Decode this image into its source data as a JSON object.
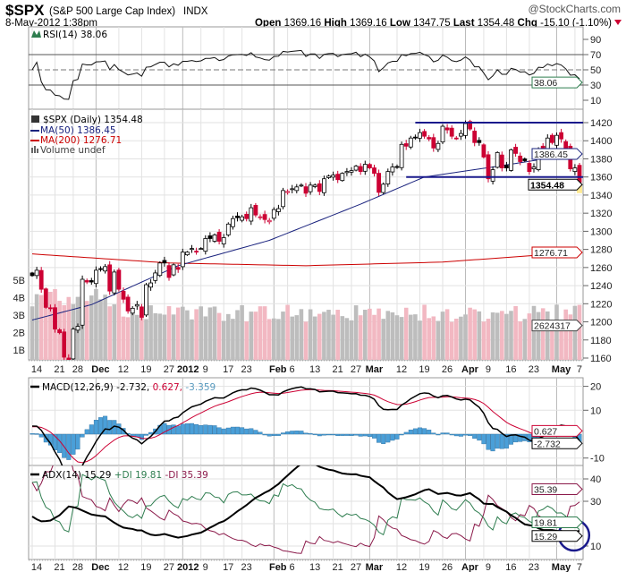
{
  "header": {
    "symbol": "$SPX",
    "name": "(S&P 500 Large Cap Index)",
    "exchange": "INDX",
    "copyright": "@StockCharts.com",
    "datetime": "8-May-2012 1:38pm",
    "open_label": "Open",
    "open": "1369.16",
    "high_label": "High",
    "high": "1369.16",
    "low_label": "Low",
    "low": "1347.75",
    "last_label": "Last",
    "last": "1354.48",
    "chg_label": "Chg",
    "chg": "-15.10 (-1.10%)"
  },
  "colors": {
    "up": "#000000",
    "down": "#cc0033",
    "vol_up": "#bdbdbd",
    "vol_down": "#f2b8c2",
    "ma50": "#1a237e",
    "ma200": "#cc0000",
    "trend": "#1a1a8c",
    "macd_hist": "#4a9fd8",
    "plus_di": "#2e7d4f",
    "minus_di": "#8b1a4a"
  },
  "rsi": {
    "legend": "RSI(14) 38.06",
    "value_box": "38.06",
    "ticks": [
      "90",
      "70",
      "50",
      "30",
      "10"
    ]
  },
  "price": {
    "legend_main": "$SPX (Daily) 1354.48",
    "legend_ma50": "MA(50) 1386.45",
    "legend_ma200": "MA(200) 1276.71",
    "legend_volume": "Volume undef",
    "box_ma50": "1386.45",
    "box_last": "1354.48",
    "box_ma200": "1276.71",
    "box_volume": "2624317",
    "ticks": [
      "1420",
      "1400",
      "1380",
      "1360",
      "1340",
      "1320",
      "1300",
      "1280",
      "1260",
      "1240",
      "1220",
      "1200",
      "1180",
      "1160"
    ],
    "volume_ticks": [
      "5B",
      "4B",
      "3B",
      "2B",
      "1B"
    ]
  },
  "macd": {
    "legend_a": "MACD(12,26,9) -2.732,",
    "legend_b": " 0.627,",
    "legend_c": " -3.359",
    "box_signal": "0.627",
    "box_macd": "-2.732",
    "ticks": [
      "20",
      "10",
      "-10"
    ]
  },
  "adx": {
    "legend_a": "ADX(14) 15.29",
    "legend_b": " +DI 19.81",
    "legend_c": " -DI 35.39",
    "box_minus": "35.39",
    "box_plus": "19.81",
    "box_adx": "15.29",
    "ticks": [
      "40",
      "30",
      "10"
    ]
  },
  "chart_data": {
    "type": "candlestick",
    "title": "$SPX (Daily)",
    "ylim": [
      1150,
      1430
    ],
    "x_labels": [
      {
        "text": "14",
        "day": 0,
        "bold": false
      },
      {
        "text": "21",
        "day": 5,
        "bold": false
      },
      {
        "text": "28",
        "day": 9,
        "bold": false
      },
      {
        "text": "Dec",
        "day": 14,
        "bold": true
      },
      {
        "text": "12",
        "day": 19,
        "bold": false
      },
      {
        "text": "19",
        "day": 24,
        "bold": false
      },
      {
        "text": "27",
        "day": 29,
        "bold": false
      },
      {
        "text": "2012",
        "day": 33,
        "bold": true
      },
      {
        "text": "9",
        "day": 37,
        "bold": false
      },
      {
        "text": "17",
        "day": 42,
        "bold": false
      },
      {
        "text": "23",
        "day": 46,
        "bold": false
      },
      {
        "text": "Feb",
        "day": 53,
        "bold": true
      },
      {
        "text": "6",
        "day": 56,
        "bold": false
      },
      {
        "text": "13",
        "day": 61,
        "bold": false
      },
      {
        "text": "21",
        "day": 66,
        "bold": false
      },
      {
        "text": "27",
        "day": 70,
        "bold": false
      },
      {
        "text": "Mar",
        "day": 74,
        "bold": true
      },
      {
        "text": "12",
        "day": 80,
        "bold": false
      },
      {
        "text": "19",
        "day": 85,
        "bold": false
      },
      {
        "text": "26",
        "day": 90,
        "bold": false
      },
      {
        "text": "Apr",
        "day": 95,
        "bold": true
      },
      {
        "text": "9",
        "day": 99,
        "bold": false
      },
      {
        "text": "16",
        "day": 104,
        "bold": false
      },
      {
        "text": "23",
        "day": 109,
        "bold": false
      },
      {
        "text": "May",
        "day": 115,
        "bold": true
      },
      {
        "text": "7",
        "day": 119,
        "bold": false
      }
    ],
    "closes": [
      1251,
      1257,
      1236,
      1216,
      1215,
      1192,
      1188,
      1161,
      1158,
      1192,
      1195,
      1247,
      1244,
      1244,
      1257,
      1258,
      1261,
      1234,
      1255,
      1236,
      1225,
      1212,
      1215,
      1219,
      1205,
      1241,
      1243,
      1254,
      1265,
      1265,
      1249,
      1263,
      1258,
      1277,
      1277,
      1281,
      1278,
      1281,
      1292,
      1292,
      1296,
      1289,
      1293,
      1308,
      1314,
      1315,
      1316,
      1314,
      1326,
      1318,
      1316,
      1313,
      1312,
      1324,
      1325,
      1345,
      1344,
      1347,
      1349,
      1351,
      1342,
      1351,
      1351,
      1344,
      1358,
      1361,
      1362,
      1357,
      1364,
      1366,
      1367,
      1372,
      1366,
      1374,
      1370,
      1364,
      1343,
      1352,
      1366,
      1371,
      1371,
      1396,
      1394,
      1403,
      1404,
      1409,
      1405,
      1402,
      1392,
      1397,
      1416,
      1412,
      1405,
      1403,
      1408,
      1419,
      1413,
      1398,
      1398,
      1382,
      1358,
      1368,
      1387,
      1370,
      1370,
      1390,
      1386,
      1377,
      1378,
      1366,
      1371,
      1391,
      1390,
      1403,
      1398,
      1406,
      1402,
      1391,
      1369,
      1370,
      1354
    ],
    "ma50_anchors": [
      [
        0,
        1202
      ],
      [
        13,
        1219
      ],
      [
        32,
        1262
      ],
      [
        52,
        1290
      ],
      [
        72,
        1330
      ],
      [
        86,
        1360
      ],
      [
        101,
        1371
      ],
      [
        120,
        1386
      ]
    ],
    "ma200_anchors": [
      [
        0,
        1275
      ],
      [
        30,
        1265
      ],
      [
        60,
        1262
      ],
      [
        90,
        1266
      ],
      [
        120,
        1277
      ]
    ],
    "trendlines": [
      {
        "level": 1420,
        "from_day": 84,
        "to_day": 120
      },
      {
        "level": 1360,
        "from_day": 82,
        "to_day": 120
      }
    ],
    "annotation": {
      "type": "circle",
      "day": 118,
      "panel": "adx",
      "value": 14
    }
  }
}
